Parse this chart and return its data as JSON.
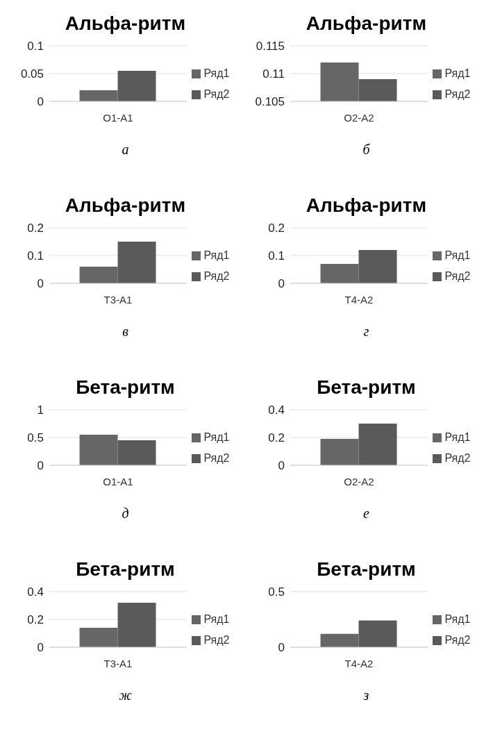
{
  "chart_data": [
    {
      "type": "bar",
      "title": "Альфа-ритм",
      "categories": [
        "O1-A1"
      ],
      "series": [
        {
          "name": "Ряд1",
          "color": "#666666",
          "values": [
            0.02
          ]
        },
        {
          "name": "Ряд2",
          "color": "#5a5a5a",
          "values": [
            0.055
          ]
        }
      ],
      "ylim": [
        0,
        0.1
      ],
      "yticks": [
        0,
        0.05,
        0.1
      ],
      "grid": "y",
      "legend": "right",
      "annotations": [
        "а"
      ]
    },
    {
      "type": "bar",
      "title": "Альфа-ритм",
      "categories": [
        "O2-A2"
      ],
      "series": [
        {
          "name": "Ряд1",
          "color": "#666666",
          "values": [
            0.112
          ]
        },
        {
          "name": "Ряд2",
          "color": "#5a5a5a",
          "values": [
            0.109
          ]
        }
      ],
      "ylim": [
        0.105,
        0.115
      ],
      "yticks": [
        0.105,
        0.11,
        0.115
      ],
      "grid": "y",
      "legend": "right",
      "annotations": [
        "б"
      ]
    },
    {
      "type": "bar",
      "title": "Альфа-ритм",
      "categories": [
        "T3-A1"
      ],
      "series": [
        {
          "name": "Ряд1",
          "color": "#666666",
          "values": [
            0.06
          ]
        },
        {
          "name": "Ряд2",
          "color": "#5a5a5a",
          "values": [
            0.15
          ]
        }
      ],
      "ylim": [
        0,
        0.2
      ],
      "yticks": [
        0,
        0.1,
        0.2
      ],
      "grid": "y",
      "legend": "right",
      "annotations": [
        "в"
      ]
    },
    {
      "type": "bar",
      "title": "Альфа-ритм",
      "categories": [
        "T4-A2"
      ],
      "series": [
        {
          "name": "Ряд1",
          "color": "#666666",
          "values": [
            0.07
          ]
        },
        {
          "name": "Ряд2",
          "color": "#5a5a5a",
          "values": [
            0.12
          ]
        }
      ],
      "ylim": [
        0,
        0.2
      ],
      "yticks": [
        0,
        0.1,
        0.2
      ],
      "grid": "y",
      "legend": "right",
      "annotations": [
        "г"
      ]
    },
    {
      "type": "bar",
      "title": "Бета-ритм",
      "categories": [
        "O1-A1"
      ],
      "series": [
        {
          "name": "Ряд1",
          "color": "#666666",
          "values": [
            0.55
          ]
        },
        {
          "name": "Ряд2",
          "color": "#5a5a5a",
          "values": [
            0.45
          ]
        }
      ],
      "ylim": [
        0,
        1
      ],
      "yticks": [
        0,
        0.5,
        1
      ],
      "grid": "y",
      "legend": "right",
      "annotations": [
        "д"
      ]
    },
    {
      "type": "bar",
      "title": "Бета-ритм",
      "categories": [
        "O2-A2"
      ],
      "series": [
        {
          "name": "Ряд1",
          "color": "#666666",
          "values": [
            0.19
          ]
        },
        {
          "name": "Ряд2",
          "color": "#5a5a5a",
          "values": [
            0.3
          ]
        }
      ],
      "ylim": [
        0,
        0.4
      ],
      "yticks": [
        0,
        0.2,
        0.4
      ],
      "grid": "y",
      "legend": "right",
      "annotations": [
        "е"
      ]
    },
    {
      "type": "bar",
      "title": "Бета-ритм",
      "categories": [
        "T3-A1"
      ],
      "series": [
        {
          "name": "Ряд1",
          "color": "#666666",
          "values": [
            0.14
          ]
        },
        {
          "name": "Ряд2",
          "color": "#5a5a5a",
          "values": [
            0.32
          ]
        }
      ],
      "ylim": [
        0,
        0.4
      ],
      "yticks": [
        0,
        0.2,
        0.4
      ],
      "grid": "y",
      "legend": "right",
      "annotations": [
        "ж"
      ]
    },
    {
      "type": "bar",
      "title": "Бета-ритм",
      "categories": [
        "T4-A2"
      ],
      "series": [
        {
          "name": "Ряд1",
          "color": "#666666",
          "values": [
            0.12
          ]
        },
        {
          "name": "Ряд2",
          "color": "#5a5a5a",
          "values": [
            0.24
          ]
        }
      ],
      "ylim": [
        0,
        0.5
      ],
      "yticks": [
        0,
        0.5
      ],
      "grid": "y",
      "legend": "right",
      "annotations": [
        "з"
      ]
    }
  ]
}
